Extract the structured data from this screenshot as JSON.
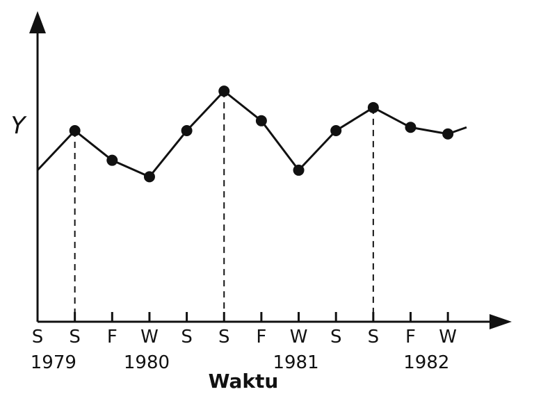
{
  "chart_data": {
    "type": "line",
    "ylabel": "Y",
    "xlabel": "Waktu",
    "x_ticks": [
      "S",
      "S",
      "F",
      "W",
      "S",
      "S",
      "F",
      "W",
      "S",
      "S",
      "F",
      "W"
    ],
    "years": [
      "1979",
      "1980",
      "1981",
      "1982"
    ],
    "x": [
      0,
      1,
      2,
      3,
      4,
      5,
      6,
      7,
      8,
      9,
      10,
      11,
      11.5
    ],
    "values": [
      4.6,
      5.8,
      4.9,
      4.4,
      5.8,
      7.0,
      6.1,
      4.6,
      5.8,
      6.5,
      5.9,
      5.7,
      5.9
    ],
    "markers": [
      false,
      true,
      true,
      true,
      true,
      true,
      true,
      true,
      true,
      true,
      true,
      true,
      false
    ],
    "peaks": [
      1,
      5,
      9
    ],
    "ylim": [
      0,
      8.5
    ],
    "line_color": "#111111",
    "grid": false
  }
}
